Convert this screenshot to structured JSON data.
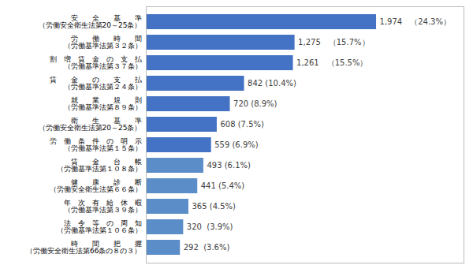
{
  "chart_data": {
    "type": "bar",
    "orientation": "horizontal",
    "categories": [
      "安　　全　　基　　準\n（労働安全衛生法第20～25条）",
      "労　　働　　時　　間\n（労働基準法第３２条）",
      "割　増　賃　金　の　支　払\n（労働基準法第３７条）",
      "賃　　金　　の　　支　　払\n（労働基準法第２４条）",
      "就　　業　　規　　則\n（労働基準法第８９条）",
      "衛　　生　　基　　準\n（労働安全衛生法第20～25条）",
      "労　働　条　件　の　明　示\n（労働基準法第１５条）",
      "賃　　金　　台　　帳\n（労働基準法第１０８条）",
      "健　　康　　診　　断\n（労働安全衛生法第６６条）",
      "年　次　有　給　休　暇\n（労働基準法第３９条）",
      "法　令　等　の　周　知\n（労働基準法第１０６条）",
      "時　　間　　把　　握\n（労働安全衛生法第66条の８の３）"
    ],
    "values": [
      1974,
      1275,
      1261,
      842,
      720,
      608,
      559,
      493,
      441,
      365,
      320,
      292
    ],
    "value_labels": [
      "1,974　（24.3%）",
      "1,275　（15.7%）",
      "1,261　（15.5%）",
      "842 (10.4%)",
      "720 (8.9%)",
      "608 (7.5%)",
      "559 (6.9%)",
      "493 (6.1%)",
      "441 (5.4%)",
      "365 (4.5%)",
      "320  (3.9%)",
      "292  (3.6%)"
    ],
    "colors": [
      "#4472C4",
      "#4472C4",
      "#4472C4",
      "#4472C4",
      "#4472C4",
      "#4472C4",
      "#4472C4",
      "#5B8DC8",
      "#5B8DC8",
      "#5B8DC8",
      "#5B8DC8",
      "#5B8DC8"
    ],
    "data_labels": true,
    "xlim": [
      0,
      2724.12
    ],
    "xticks": [],
    "tick_labels": "y",
    "grid": false
  }
}
